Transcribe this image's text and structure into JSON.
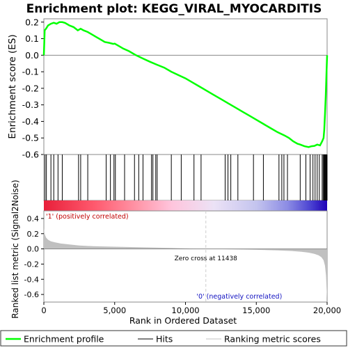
{
  "chart_data": {
    "type": "line",
    "title": "Enrichment plot: KEGG_VIRAL_MYOCARDITIS",
    "xlabel": "Rank in Ordered Dataset",
    "xlim": [
      0,
      20000
    ],
    "x_ticks": [
      "0",
      "5,000",
      "10,000",
      "15,000",
      "20,000"
    ],
    "x_tick_values": [
      0,
      5000,
      10000,
      15000,
      20000
    ],
    "enrichment_panel": {
      "ylabel": "Enrichment score (ES)",
      "ylim": [
        -0.6,
        0.22
      ],
      "y_ticks": [
        "0.2",
        "0.1",
        "0.0",
        "-0.1",
        "-0.2",
        "-0.3",
        "-0.4",
        "-0.5",
        "-0.6"
      ],
      "y_tick_values": [
        0.2,
        0.1,
        0.0,
        -0.1,
        -0.2,
        -0.3,
        -0.4,
        -0.5,
        -0.6
      ],
      "line_color": "#00ff00",
      "series": [
        {
          "x": [
            0,
            60,
            150,
            300,
            500,
            700,
            900,
            1100,
            1300,
            1500,
            1800,
            2100,
            2400,
            2600,
            2800,
            3100,
            3400,
            3700,
            4000,
            4300,
            4600,
            4900,
            5000,
            5300,
            5600,
            6000,
            6500,
            7000,
            7500,
            8000,
            8500,
            9000,
            9500,
            10000,
            10500,
            11000,
            11500,
            12000,
            12500,
            13000,
            13500,
            14000,
            14500,
            15000,
            15500,
            16000,
            16500,
            17000,
            17300,
            17600,
            17900,
            18100,
            18400,
            18700,
            18900,
            19100,
            19300,
            19500,
            19650,
            19750,
            19800,
            19850,
            19900,
            19950,
            20000
          ],
          "y": [
            0.0,
            0.15,
            0.16,
            0.18,
            0.19,
            0.196,
            0.19,
            0.2,
            0.2,
            0.195,
            0.18,
            0.17,
            0.15,
            0.16,
            0.15,
            0.14,
            0.125,
            0.11,
            0.095,
            0.08,
            0.075,
            0.068,
            0.07,
            0.055,
            0.04,
            0.025,
            0.0,
            -0.02,
            -0.04,
            -0.058,
            -0.075,
            -0.1,
            -0.12,
            -0.14,
            -0.165,
            -0.19,
            -0.215,
            -0.24,
            -0.265,
            -0.29,
            -0.315,
            -0.34,
            -0.365,
            -0.39,
            -0.415,
            -0.44,
            -0.465,
            -0.485,
            -0.5,
            -0.52,
            -0.535,
            -0.54,
            -0.55,
            -0.555,
            -0.55,
            -0.548,
            -0.54,
            -0.545,
            -0.52,
            -0.5,
            -0.45,
            -0.36,
            -0.25,
            -0.12,
            0.0
          ]
        }
      ]
    },
    "hits": [
      80,
      180,
      500,
      700,
      1000,
      1300,
      2450,
      2600,
      3100,
      4400,
      4700,
      4950,
      5050,
      5700,
      6400,
      6700,
      7000,
      7600,
      7700,
      7900,
      8000,
      9000,
      9700,
      10600,
      11100,
      12800,
      13000,
      13200,
      13700,
      14800,
      15500,
      16600,
      16800,
      16950,
      17200,
      18100,
      18500,
      18800,
      19000,
      19150,
      19300,
      19450,
      19650,
      19720,
      19780,
      19830,
      19870,
      19910,
      19940,
      19960,
      19980,
      19995
    ],
    "gradient_bar": {
      "label_positive": "'1' (positively correlated)",
      "label_negative": "'0' (negatively correlated)",
      "colors": [
        "#e8203a",
        "#ff5a6e",
        "#ff96a8",
        "#ffc4dc",
        "#ece2f6",
        "#c4c4ee",
        "#8c8ce4",
        "#4c44d2",
        "#1e00b8"
      ],
      "stops": [
        0,
        0.18,
        0.33,
        0.45,
        0.6,
        0.75,
        0.86,
        0.94,
        1.0
      ]
    },
    "metric_panel": {
      "ylabel": "Ranked list metric (Signal2Noise)",
      "ylim": [
        -0.7,
        0.5
      ],
      "y_ticks": [
        "0.4",
        "0.2",
        "0.0",
        "-0.2",
        "-0.4",
        "-0.6"
      ],
      "y_tick_values": [
        0.4,
        0.2,
        0.0,
        -0.2,
        -0.4,
        -0.6
      ],
      "zero_cross_label": "Zero cross at 11438",
      "zero_cross": 11438,
      "fill_color": "#c0c0c0",
      "x": [
        0,
        50,
        150,
        300,
        500,
        800,
        1200,
        1700,
        2500,
        3500,
        5000,
        7000,
        9000,
        11438,
        13000,
        15000,
        16500,
        17500,
        18200,
        18700,
        19100,
        19400,
        19600,
        19750,
        19850,
        19920,
        19970,
        20000
      ],
      "values": [
        0.27,
        0.2,
        0.15,
        0.12,
        0.1,
        0.085,
        0.07,
        0.06,
        0.045,
        0.035,
        0.028,
        0.02,
        0.012,
        0.0,
        -0.005,
        -0.012,
        -0.02,
        -0.028,
        -0.038,
        -0.05,
        -0.065,
        -0.085,
        -0.11,
        -0.15,
        -0.22,
        -0.35,
        -0.55,
        -0.65
      ]
    },
    "legend": {
      "placement": "bottom",
      "entries": [
        {
          "name": "Enrichment profile",
          "color": "#00ff00"
        },
        {
          "name": "Hits",
          "color": "#000000"
        },
        {
          "name": "Ranking metric scores",
          "color": "#c0c0c0"
        }
      ]
    }
  }
}
